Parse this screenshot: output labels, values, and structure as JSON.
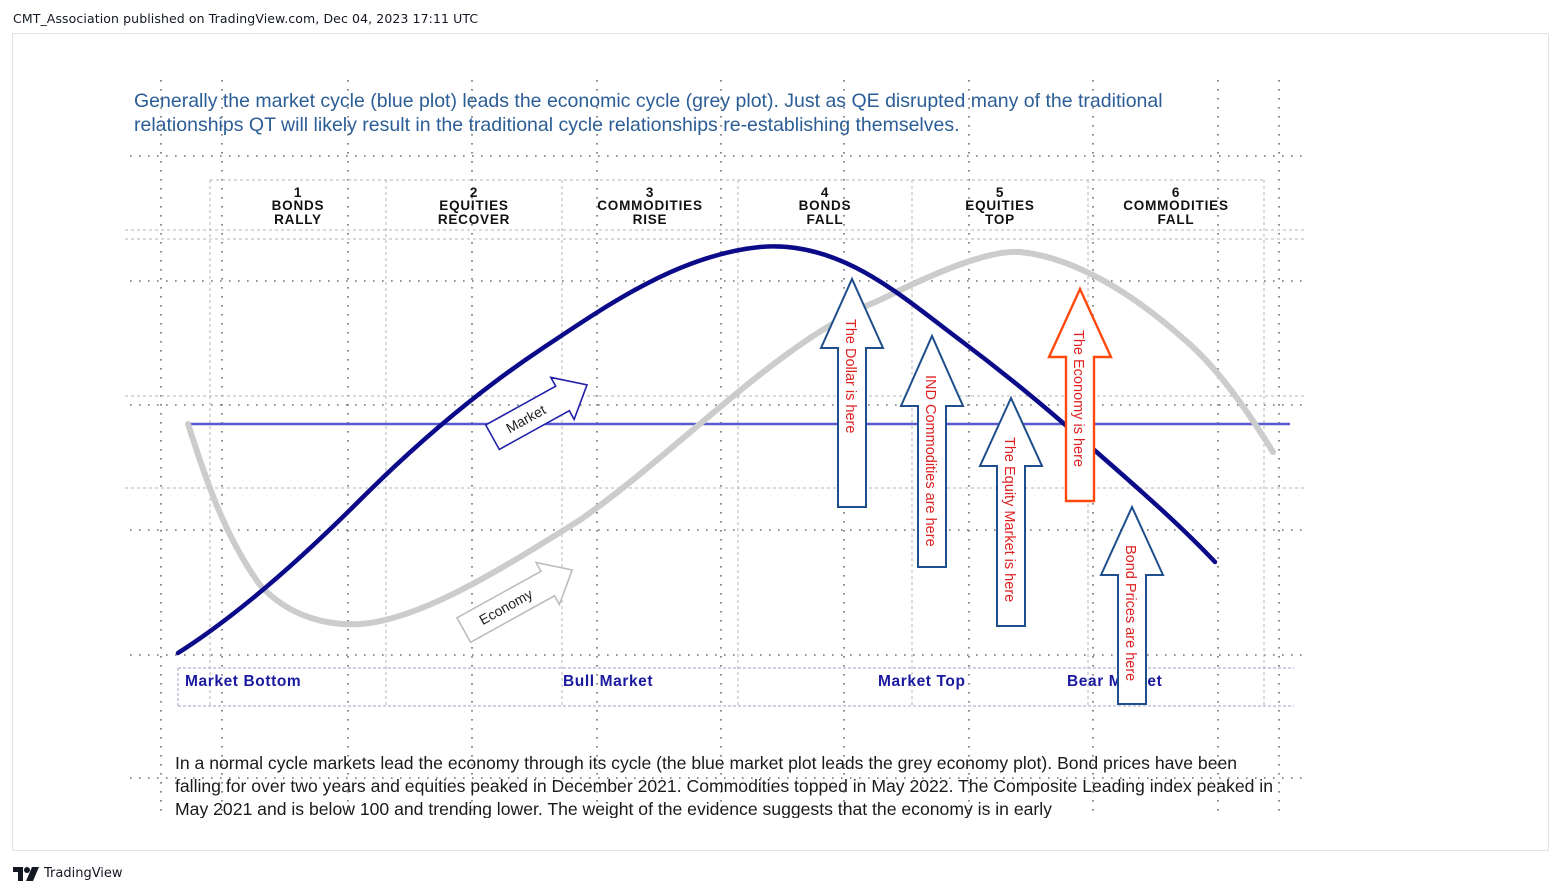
{
  "header": {
    "publisher_line": "CMT_Association published on TradingView.com, Dec 04, 2023 17:11 UTC"
  },
  "footer": {
    "brand_name": "TradingView"
  },
  "intro_text": "Generally the market cycle (blue plot) leads the economic cycle (grey plot). Just as QE disrupted many of the traditional relationships QT will likely result in the traditional cycle relationships re-establishing themselves.",
  "outro_text": "In a normal cycle markets lead the economy through its cycle (the blue market plot leads the grey economy plot). Bond prices have been falling for over two years and equities peaked in December 2021. Commodities topped in May 2022.  The Composite Leading index peaked in May 2021 and is below 100 and trending lower. The weight of the evidence suggests that the economy is in early",
  "stages": [
    {
      "num": "1",
      "line1": "BONDS",
      "line2": "RALLY"
    },
    {
      "num": "2",
      "line1": "EQUITIES",
      "line2": "RECOVER"
    },
    {
      "num": "3",
      "line1": "COMMODITIES",
      "line2": "RISE"
    },
    {
      "num": "4",
      "line1": "BONDS",
      "line2": "FALL"
    },
    {
      "num": "5",
      "line1": "EQUITIES",
      "line2": "TOP"
    },
    {
      "num": "6",
      "line1": "COMMODITIES",
      "line2": "FALL"
    }
  ],
  "bottom_band": {
    "market_bottom": "Market Bottom",
    "bull_market": "Bull Market",
    "market_top": "Market Top",
    "bear_market": "Bear Market"
  },
  "curve_labels": {
    "market": "Market",
    "economy": "Economy"
  },
  "arrows": {
    "dollar": "The Dollar is here",
    "ind_commodities": "IND Commodities are here",
    "equity_market": "The Equity Market is here",
    "economy": "The Economy is here",
    "bond_prices": "Bond Prices are here"
  },
  "colors": {
    "market_curve": "#0b0b8a",
    "economy_curve": "#c8c8c8",
    "midline": "#5a5ad0",
    "arrow_blue": "#1f4e8c",
    "arrow_orange": "#ff4a0f",
    "arrow_text_red": "#e02020",
    "intro_text": "#2b5e96"
  }
}
